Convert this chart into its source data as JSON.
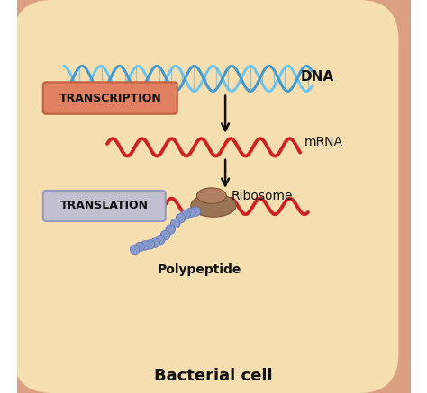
{
  "bg_color": "#ffffff",
  "cell_outer_color": "#dba082",
  "cell_inner_color": "#f5deb0",
  "dna_color1": "#6ec6f0",
  "dna_color2": "#4499cc",
  "mrna_color": "#cc2222",
  "ribosome_color_main": "#9b7355",
  "ribosome_color_top": "#b08060",
  "polypeptide_color": "#8899cc",
  "transcription_box_color": "#e08060",
  "translation_box_color": "#c0c0d0",
  "arrow_color": "#111111",
  "text_dna": "DNA",
  "text_mrna": "mRNA",
  "text_ribosome": "Ribosome",
  "text_polypeptide": "Polypeptide",
  "text_transcription": "TRANSCRIPTION",
  "text_translation": "TRANSLATION",
  "text_bacterial_cell": "Bacterial cell",
  "figsize": [
    4.74,
    4.37
  ],
  "dpi": 100
}
